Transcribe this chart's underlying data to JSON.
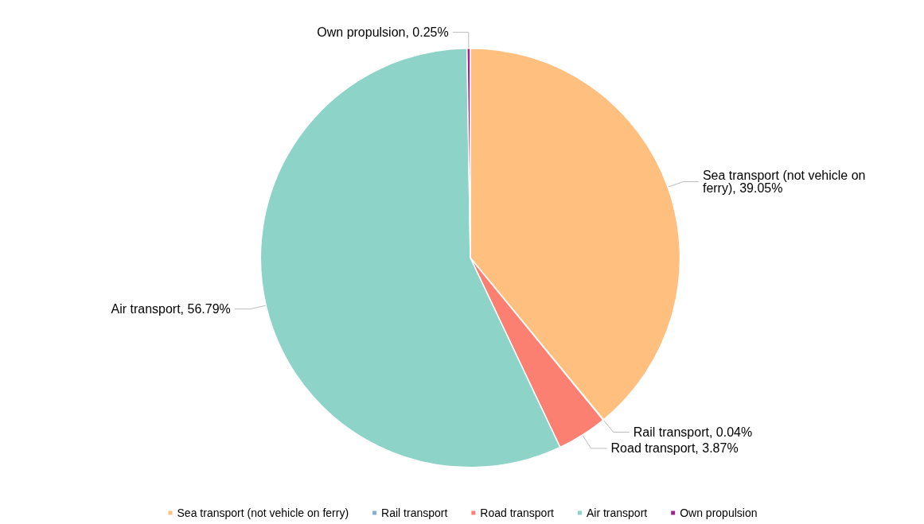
{
  "chart_data": {
    "type": "pie",
    "categories": [
      "Sea transport (not vehicle on ferry)",
      "Rail transport",
      "Road transport",
      "Air transport",
      "Own propulsion"
    ],
    "values": [
      39.05,
      0.04,
      3.87,
      56.79,
      0.25
    ],
    "value_labels": [
      "Sea transport (not vehicle on ferry), 39.05%",
      "Rail transport, 0.04%",
      "Road transport, 3.87%",
      "Air transport, 56.79%",
      "Own propulsion, 0.25%"
    ],
    "colors": [
      "#ffbf7f",
      "#80b1d3",
      "#fb8072",
      "#8dd3c7",
      "#a0228e"
    ],
    "legend": "bottom"
  }
}
